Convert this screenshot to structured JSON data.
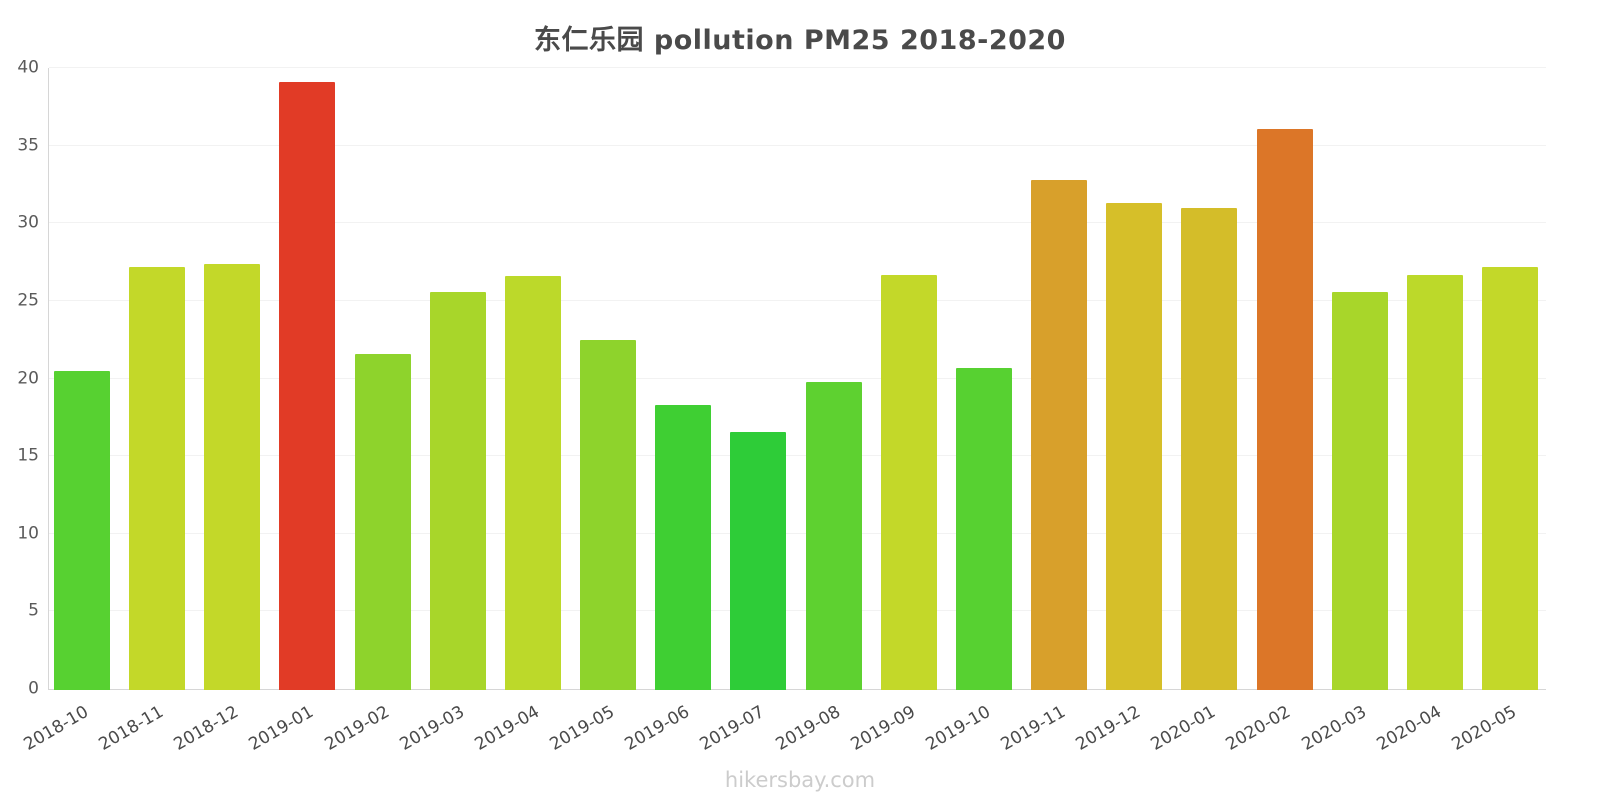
{
  "title": "东仁乐园 pollution PM25 2018-2020",
  "watermark": "hikersbay.com",
  "chart_data": {
    "type": "bar",
    "title": "东仁乐园 pollution PM25 2018-2020",
    "xlabel": "",
    "ylabel": "",
    "ylim": [
      0,
      40
    ],
    "yticks": [
      0,
      5,
      10,
      15,
      20,
      25,
      30,
      35,
      40
    ],
    "grid": true,
    "legend": "none",
    "categories": [
      "2018-10",
      "2018-11",
      "2018-12",
      "2019-01",
      "2019-02",
      "2019-03",
      "2019-04",
      "2019-05",
      "2019-06",
      "2019-07",
      "2019-08",
      "2019-09",
      "2019-10",
      "2019-11",
      "2019-12",
      "2020-01",
      "2020-02",
      "2020-03",
      "2020-04",
      "2020-05"
    ],
    "values": [
      20.5,
      27.2,
      27.4,
      39.1,
      21.6,
      25.6,
      26.6,
      22.5,
      18.3,
      16.6,
      19.8,
      26.7,
      20.7,
      32.8,
      31.3,
      31.0,
      36.1,
      25.6,
      26.7,
      27.2
    ],
    "colors": [
      "#57d131",
      "#c3d829",
      "#c3d829",
      "#e13b26",
      "#8ed32c",
      "#a8d62a",
      "#bcd92a",
      "#8ed32c",
      "#3fcf33",
      "#2ecc38",
      "#5ed130",
      "#c3d829",
      "#57d131",
      "#d8a02b",
      "#d6bf29",
      "#d4bd29",
      "#dc7628",
      "#a8d62a",
      "#bcd92a",
      "#c3d829"
    ]
  }
}
